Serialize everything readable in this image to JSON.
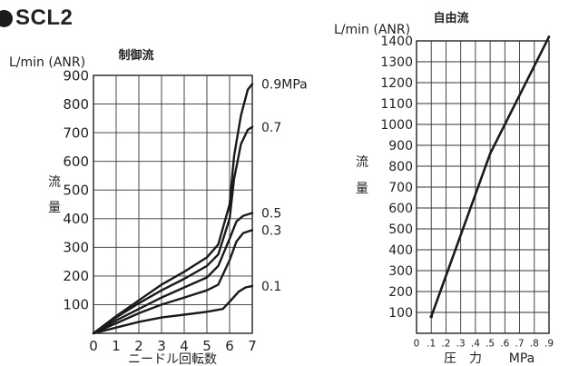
{
  "product_model": "SCL2",
  "chart_data": [
    {
      "type": "line",
      "title": "制御流",
      "unit_label": "L/min (ANR)",
      "xlabel": "ニードル回転数",
      "ylabel": "流量",
      "xlim": [
        0,
        7
      ],
      "ylim": [
        0,
        900
      ],
      "x_ticks": [
        0,
        1,
        2,
        3,
        4,
        5,
        6,
        7
      ],
      "y_ticks": [
        100,
        200,
        300,
        400,
        500,
        600,
        700,
        800,
        900
      ],
      "grid": true,
      "series": [
        {
          "name": "0.9MPa",
          "points": [
            [
              0,
              0
            ],
            [
              1,
              60
            ],
            [
              2,
              115
            ],
            [
              3,
              170
            ],
            [
              4,
              215
            ],
            [
              5,
              265
            ],
            [
              5.5,
              310
            ],
            [
              6,
              450
            ],
            [
              6.2,
              620
            ],
            [
              6.5,
              760
            ],
            [
              6.8,
              850
            ],
            [
              7,
              870
            ]
          ]
        },
        {
          "name": "0.7",
          "points": [
            [
              0,
              0
            ],
            [
              1,
              55
            ],
            [
              2,
              105
            ],
            [
              3,
              150
            ],
            [
              4,
              190
            ],
            [
              5,
              235
            ],
            [
              5.5,
              275
            ],
            [
              6,
              400
            ],
            [
              6.2,
              540
            ],
            [
              6.5,
              660
            ],
            [
              6.8,
              710
            ],
            [
              7,
              720
            ]
          ]
        },
        {
          "name": "0.5",
          "points": [
            [
              0,
              0
            ],
            [
              1,
              45
            ],
            [
              2,
              85
            ],
            [
              3,
              125
            ],
            [
              4,
              160
            ],
            [
              5,
              195
            ],
            [
              5.5,
              235
            ],
            [
              6,
              330
            ],
            [
              6.3,
              390
            ],
            [
              6.6,
              410
            ],
            [
              7,
              420
            ]
          ]
        },
        {
          "name": "0.3",
          "points": [
            [
              0,
              0
            ],
            [
              1,
              35
            ],
            [
              2,
              70
            ],
            [
              3,
              100
            ],
            [
              4,
              125
            ],
            [
              5,
              150
            ],
            [
              5.5,
              170
            ],
            [
              6,
              255
            ],
            [
              6.3,
              320
            ],
            [
              6.6,
              350
            ],
            [
              7,
              360
            ]
          ]
        },
        {
          "name": "0.1",
          "points": [
            [
              0,
              0
            ],
            [
              1,
              20
            ],
            [
              2,
              40
            ],
            [
              3,
              55
            ],
            [
              4,
              65
            ],
            [
              5,
              75
            ],
            [
              5.7,
              85
            ],
            [
              6,
              110
            ],
            [
              6.4,
              145
            ],
            [
              6.7,
              160
            ],
            [
              7,
              165
            ]
          ]
        }
      ],
      "line_color": "#1a1a1a"
    },
    {
      "type": "line",
      "title": "自由流",
      "unit_label": "L/min (ANR)",
      "xlabel": "圧　力",
      "xunit": "MPa",
      "ylabel": "流量",
      "xlim": [
        0,
        0.9
      ],
      "ylim": [
        0,
        1400
      ],
      "x_ticks": [
        0,
        0.1,
        0.2,
        0.3,
        0.4,
        0.5,
        0.6,
        0.7,
        0.8,
        0.9
      ],
      "y_ticks": [
        100,
        200,
        300,
        400,
        500,
        600,
        700,
        800,
        900,
        1000,
        1100,
        1200,
        1300,
        1400
      ],
      "grid": true,
      "series": [
        {
          "points": [
            [
              0.1,
              80
            ],
            [
              0.5,
              860
            ],
            [
              0.9,
              1420
            ]
          ]
        }
      ],
      "line_color": "#1a1a1a"
    }
  ]
}
